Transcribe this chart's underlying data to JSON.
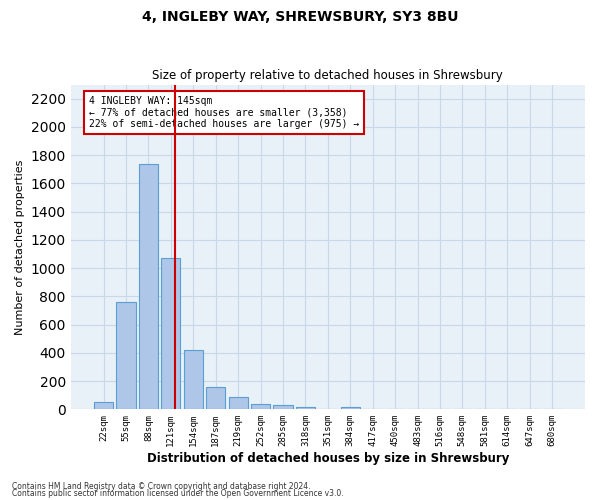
{
  "title1": "4, INGLEBY WAY, SHREWSBURY, SY3 8BU",
  "title2": "Size of property relative to detached houses in Shrewsbury",
  "xlabel": "Distribution of detached houses by size in Shrewsbury",
  "ylabel": "Number of detached properties",
  "bar_labels": [
    "22sqm",
    "55sqm",
    "88sqm",
    "121sqm",
    "154sqm",
    "187sqm",
    "219sqm",
    "252sqm",
    "285sqm",
    "318sqm",
    "351sqm",
    "384sqm",
    "417sqm",
    "450sqm",
    "483sqm",
    "516sqm",
    "548sqm",
    "581sqm",
    "614sqm",
    "647sqm",
    "680sqm"
  ],
  "bar_values": [
    55,
    760,
    1740,
    1075,
    420,
    155,
    85,
    40,
    30,
    20,
    0,
    18,
    0,
    0,
    0,
    0,
    0,
    0,
    0,
    0,
    0
  ],
  "bar_color": "#aec6e8",
  "bar_edge_color": "#5a9fd4",
  "annotation_text": "4 INGLEBY WAY: 145sqm\n← 77% of detached houses are smaller (3,358)\n22% of semi-detached houses are larger (975) →",
  "annotation_box_color": "#ffffff",
  "annotation_box_edge": "#cc0000",
  "vline_color": "#cc0000",
  "ylim": [
    0,
    2300
  ],
  "yticks": [
    0,
    200,
    400,
    600,
    800,
    1000,
    1200,
    1400,
    1600,
    1800,
    2000,
    2200
  ],
  "grid_color": "#c8d8e8",
  "bg_color": "#e8f0f8",
  "footer1": "Contains HM Land Registry data © Crown copyright and database right 2024.",
  "footer2": "Contains public sector information licensed under the Open Government Licence v3.0."
}
